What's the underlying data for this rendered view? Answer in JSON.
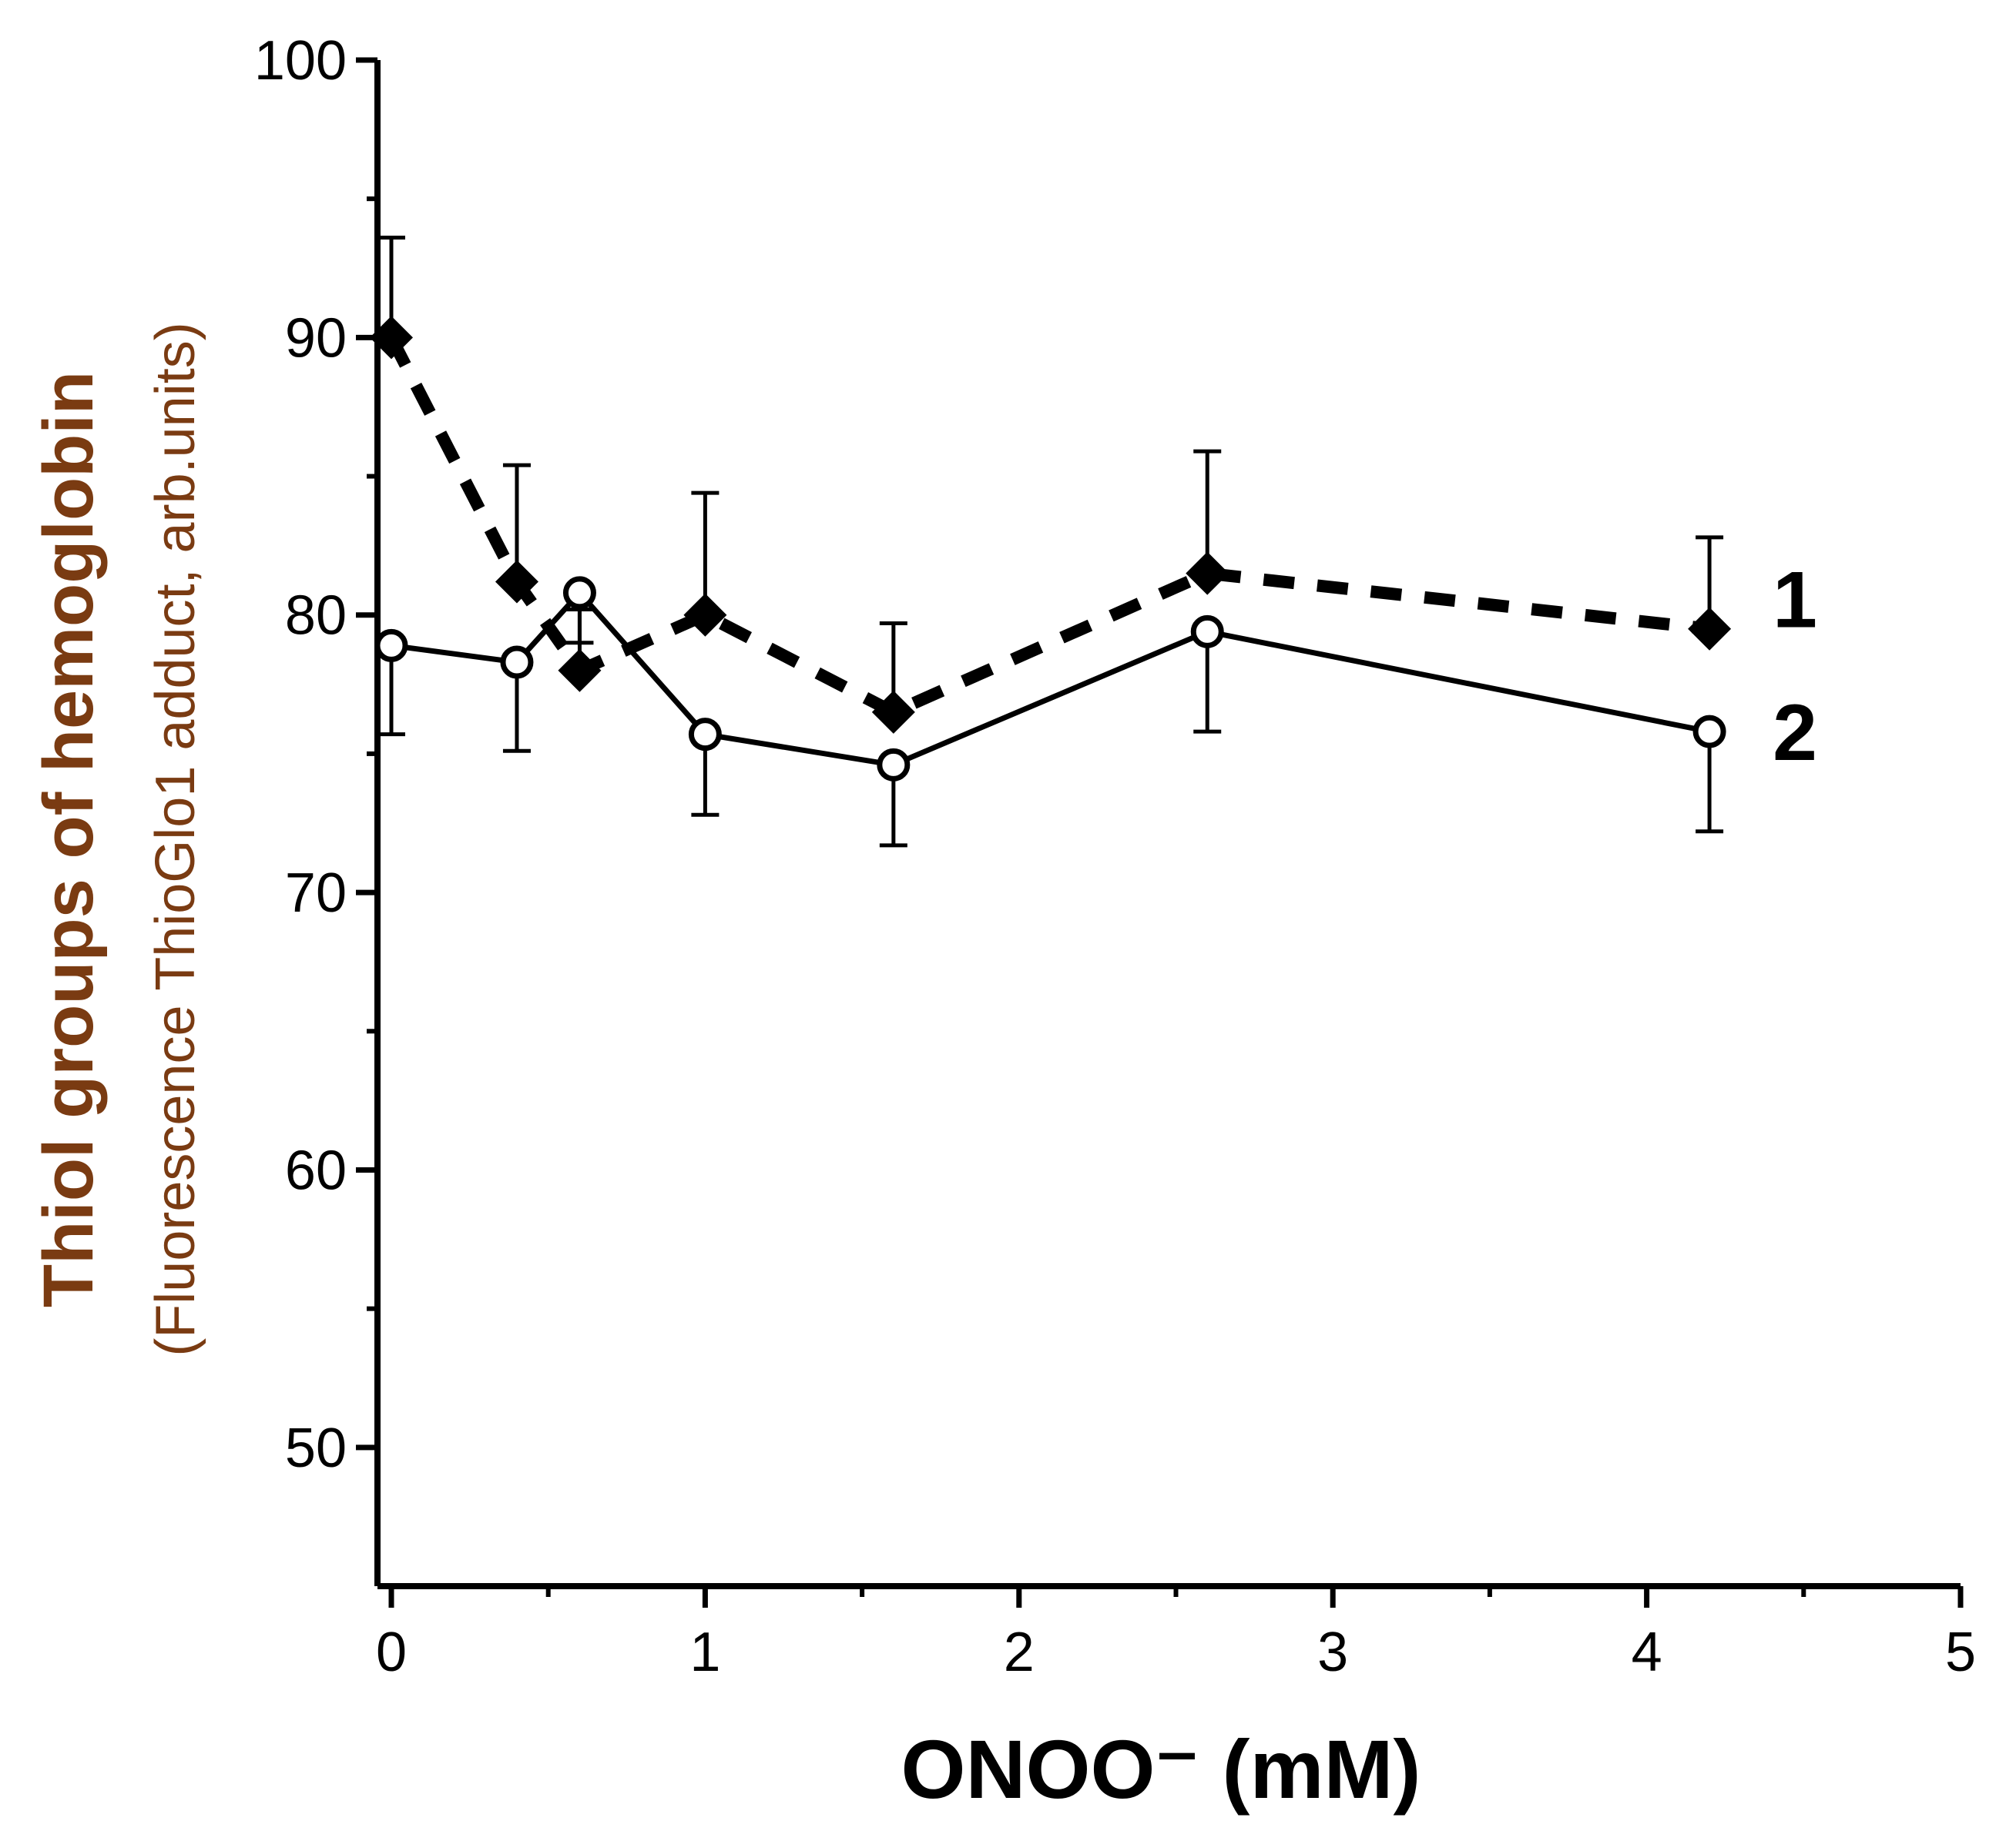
{
  "chart_data": {
    "type": "line",
    "xlabel": "ONOO⁻ (mM)",
    "ylabel": "Thiol groups of hemoglobin",
    "ylabel_sub": "(Fluorescence ThioGlo1 adduct, arb.units)",
    "xlim": [
      0,
      5
    ],
    "ylim": [
      45,
      100
    ],
    "x_ticks": [
      0,
      1,
      2,
      3,
      4,
      5
    ],
    "y_ticks": [
      50,
      60,
      70,
      80,
      90,
      100
    ],
    "grid": false,
    "series": [
      {
        "name": "1",
        "style": "dashed",
        "marker": "filled-diamond",
        "x": [
          0,
          0.4,
          0.6,
          1.0,
          1.6,
          2.6,
          4.2
        ],
        "y": [
          90.0,
          81.2,
          78.0,
          80.0,
          76.5,
          81.5,
          79.5
        ],
        "err": [
          3.6,
          4.2,
          2.2,
          4.4,
          3.2,
          4.4,
          3.3
        ]
      },
      {
        "name": "2",
        "style": "solid",
        "marker": "open-circle",
        "x": [
          0,
          0.4,
          0.6,
          1.0,
          1.6,
          2.6,
          4.2
        ],
        "y": [
          78.9,
          78.3,
          80.8,
          75.7,
          74.6,
          79.4,
          75.8
        ],
        "err": [
          3.2,
          3.2,
          1.8,
          2.9,
          2.9,
          3.6,
          3.6
        ]
      }
    ]
  }
}
